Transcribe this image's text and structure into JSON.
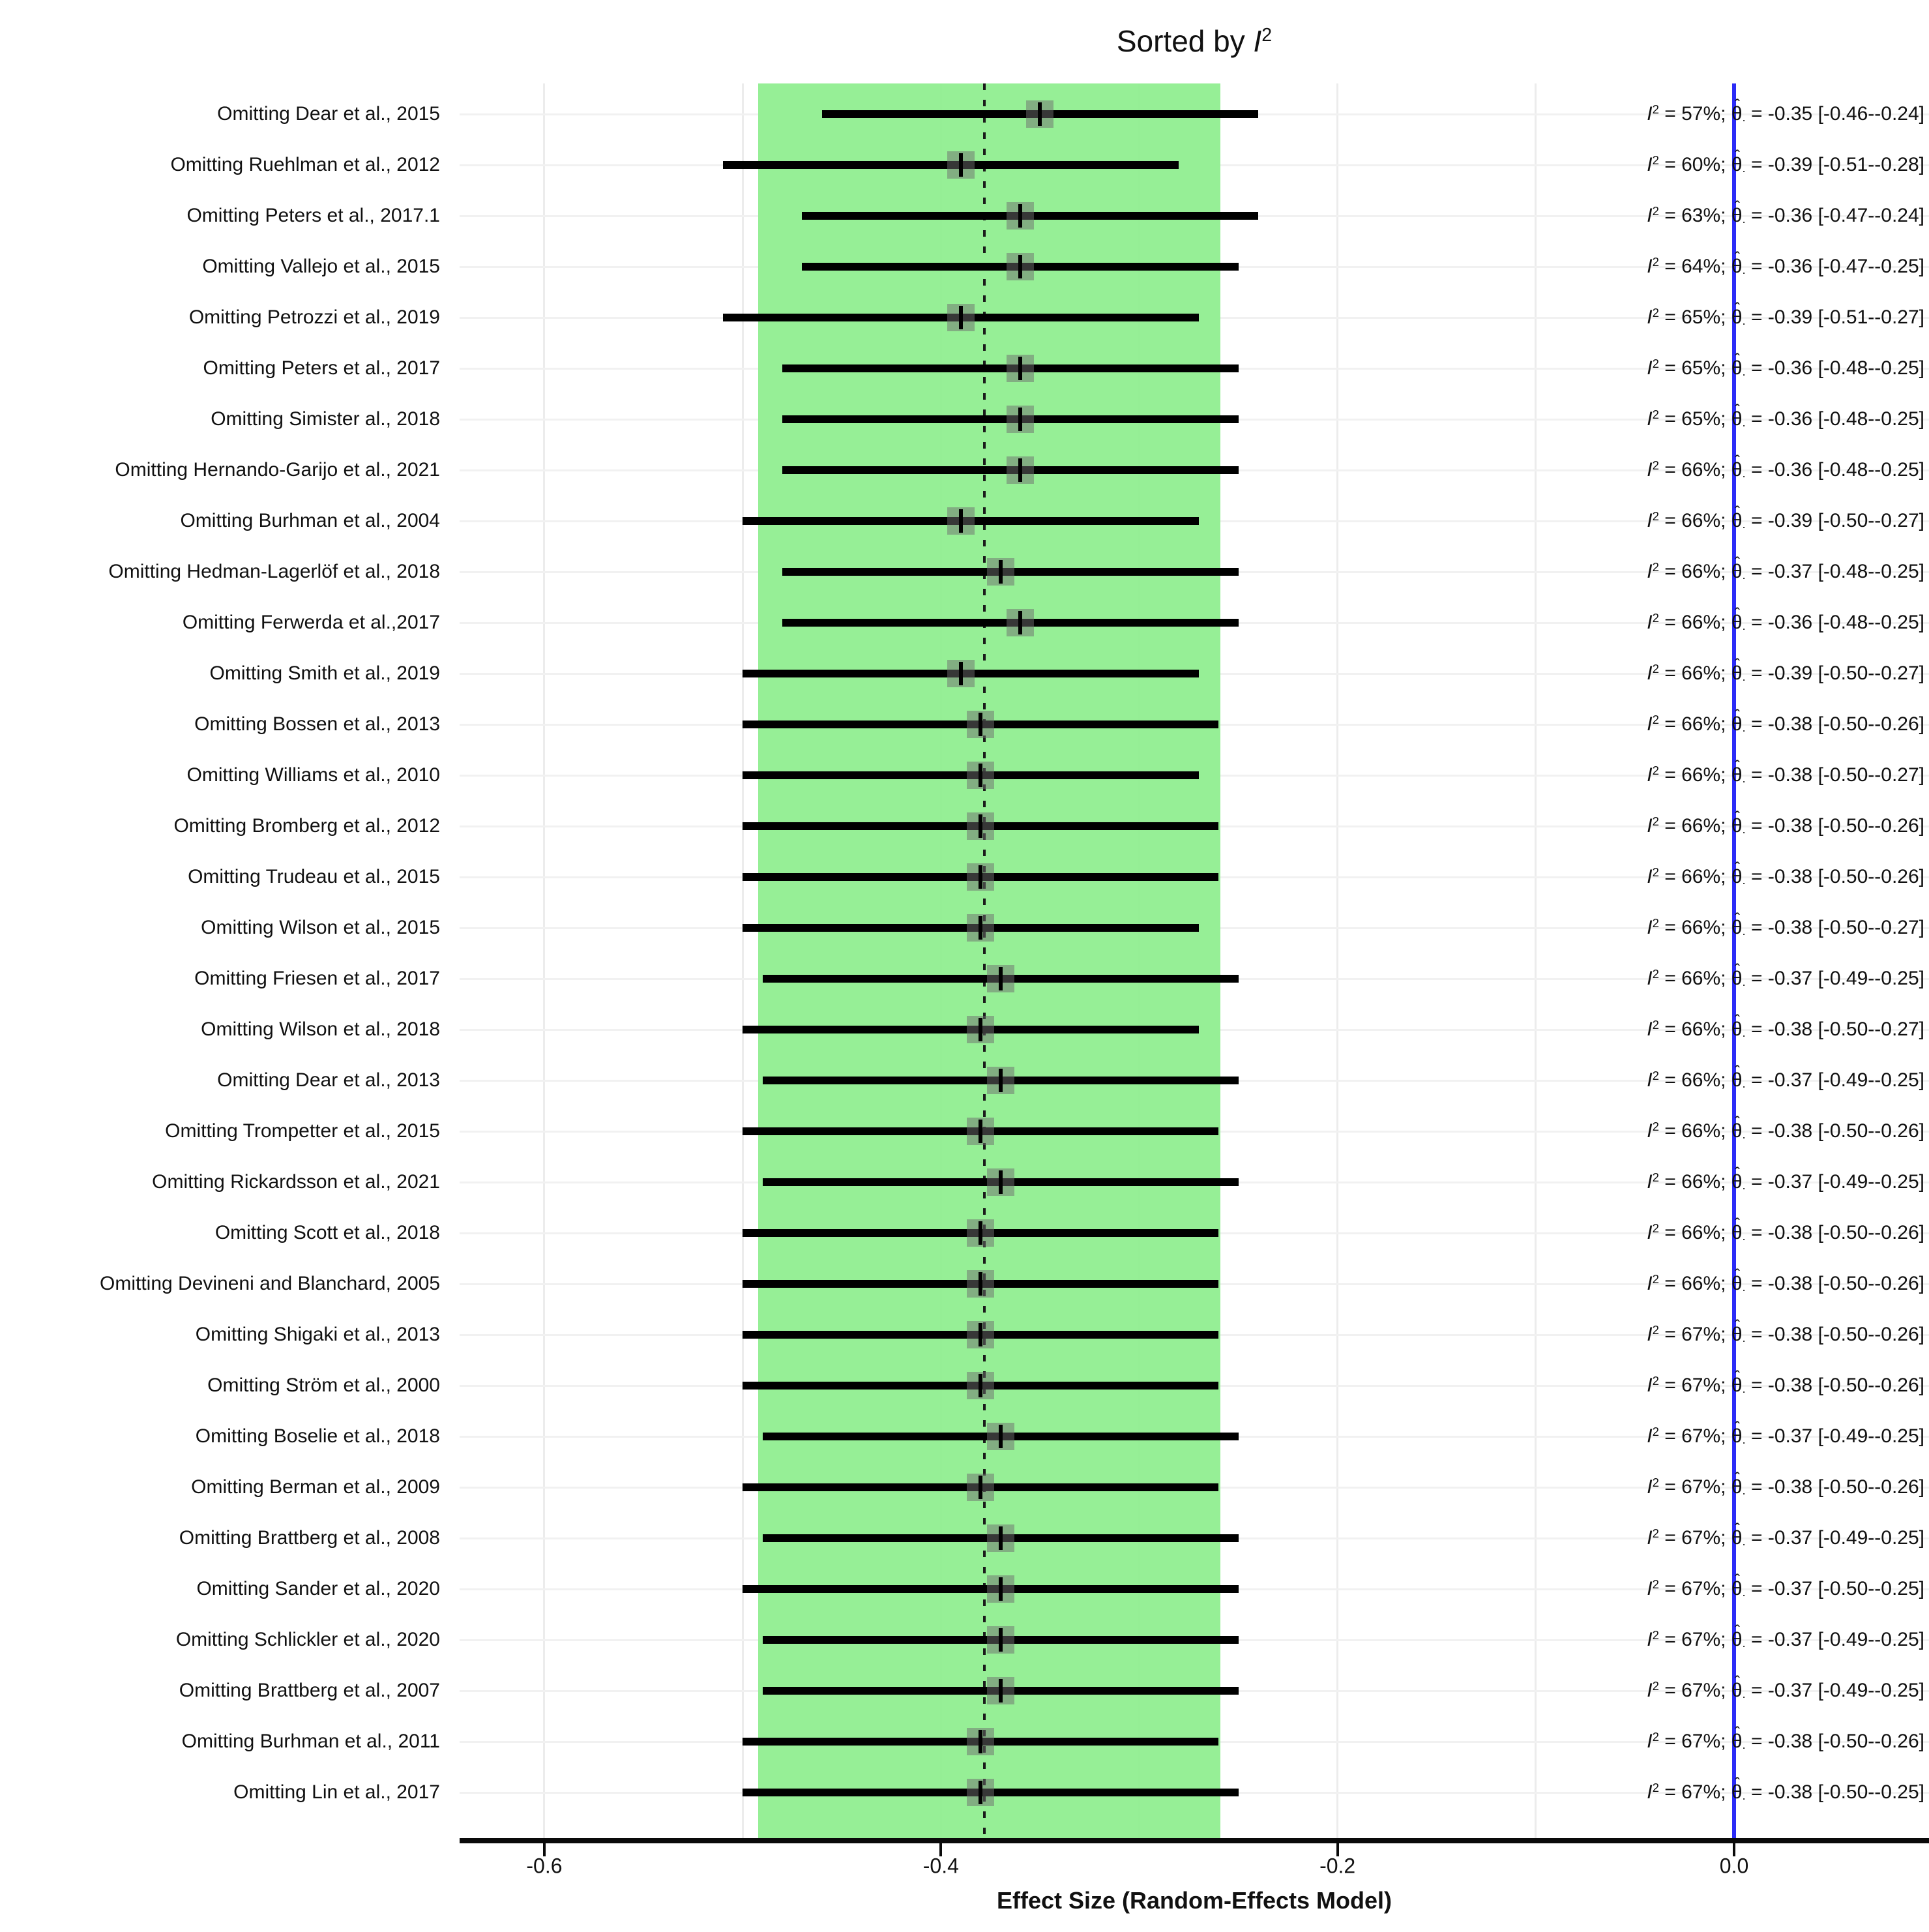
{
  "title": {
    "prefix": "Sorted by ",
    "i_symbol": "I",
    "exponent": "2"
  },
  "x_axis": {
    "label": "Effect Size (Random-Effects Model)",
    "ticks": [
      {
        "value": -0.6,
        "label": "-0.6"
      },
      {
        "value": -0.4,
        "label": "-0.4"
      },
      {
        "value": -0.2,
        "label": "-0.2"
      },
      {
        "value": 0.0,
        "label": "0.0"
      }
    ]
  },
  "annot_format": {
    "i_symbol": "I",
    "i_exponent": "2",
    "equals": " = ",
    "separator": "; ",
    "theta_symbol": "θ",
    "hat_symbol": "ˆ",
    "theta_subscript": ".",
    "space": " ",
    "bracket_open": "[",
    "ci_joiner": "-",
    "bracket_close": "]"
  },
  "colors": {
    "green_band": "rgba(144,238,144,0.95)",
    "zero_line": "#2b2bf7",
    "pooled_line": "#1b1b1b",
    "ci_line": "#000000",
    "marker": "rgba(110,110,110,0.5)"
  },
  "chart_data": {
    "type": "scatter",
    "subtype": "forest-plot-leave-one-out",
    "title": "Sorted by I2",
    "xlabel": "Effect Size (Random-Effects Model)",
    "xlim": [
      -0.643,
      0.098
    ],
    "x_ticks": [
      -0.6,
      -0.4,
      -0.2,
      0.0
    ],
    "x_gridlines": [
      -0.6,
      -0.5,
      -0.4,
      -0.3,
      -0.2,
      -0.1,
      0.0
    ],
    "grid": true,
    "green_band": [
      -0.492,
      -0.259
    ],
    "pooled_estimate_line": -0.378,
    "reference_line": 0.0,
    "legend_position": "none",
    "rows": [
      {
        "label": "Omitting Dear et al., 2015",
        "i2": "57%",
        "estimate": "-0.35",
        "ci_low": "-0.46",
        "ci_high": "-0.24"
      },
      {
        "label": "Omitting Ruehlman et al., 2012",
        "i2": "60%",
        "estimate": "-0.39",
        "ci_low": "-0.51",
        "ci_high": "-0.28"
      },
      {
        "label": "Omitting Peters et al., 2017.1",
        "i2": "63%",
        "estimate": "-0.36",
        "ci_low": "-0.47",
        "ci_high": "-0.24"
      },
      {
        "label": "Omitting Vallejo et al., 2015",
        "i2": "64%",
        "estimate": "-0.36",
        "ci_low": "-0.47",
        "ci_high": "-0.25"
      },
      {
        "label": "Omitting Petrozzi et al., 2019",
        "i2": "65%",
        "estimate": "-0.39",
        "ci_low": "-0.51",
        "ci_high": "-0.27"
      },
      {
        "label": "Omitting Peters et al., 2017",
        "i2": "65%",
        "estimate": "-0.36",
        "ci_low": "-0.48",
        "ci_high": "-0.25"
      },
      {
        "label": "Omitting Simister al., 2018",
        "i2": "65%",
        "estimate": "-0.36",
        "ci_low": "-0.48",
        "ci_high": "-0.25"
      },
      {
        "label": "Omitting Hernando-Garijo et al., 2021",
        "i2": "66%",
        "estimate": "-0.36",
        "ci_low": "-0.48",
        "ci_high": "-0.25"
      },
      {
        "label": "Omitting Burhman et al., 2004",
        "i2": "66%",
        "estimate": "-0.39",
        "ci_low": "-0.50",
        "ci_high": "-0.27"
      },
      {
        "label": "Omitting Hedman-Lagerlöf et al., 2018",
        "i2": "66%",
        "estimate": "-0.37",
        "ci_low": "-0.48",
        "ci_high": "-0.25"
      },
      {
        "label": "Omitting Ferwerda et al.,2017",
        "i2": "66%",
        "estimate": "-0.36",
        "ci_low": "-0.48",
        "ci_high": "-0.25"
      },
      {
        "label": "Omitting Smith et al., 2019",
        "i2": "66%",
        "estimate": "-0.39",
        "ci_low": "-0.50",
        "ci_high": "-0.27"
      },
      {
        "label": "Omitting Bossen et al., 2013",
        "i2": "66%",
        "estimate": "-0.38",
        "ci_low": "-0.50",
        "ci_high": "-0.26"
      },
      {
        "label": "Omitting Williams et al., 2010",
        "i2": "66%",
        "estimate": "-0.38",
        "ci_low": "-0.50",
        "ci_high": "-0.27"
      },
      {
        "label": "Omitting Bromberg et al., 2012",
        "i2": "66%",
        "estimate": "-0.38",
        "ci_low": "-0.50",
        "ci_high": "-0.26"
      },
      {
        "label": "Omitting Trudeau et al., 2015",
        "i2": "66%",
        "estimate": "-0.38",
        "ci_low": "-0.50",
        "ci_high": "-0.26"
      },
      {
        "label": "Omitting Wilson et al., 2015",
        "i2": "66%",
        "estimate": "-0.38",
        "ci_low": "-0.50",
        "ci_high": "-0.27"
      },
      {
        "label": "Omitting Friesen et al., 2017",
        "i2": "66%",
        "estimate": "-0.37",
        "ci_low": "-0.49",
        "ci_high": "-0.25"
      },
      {
        "label": "Omitting Wilson et al., 2018",
        "i2": "66%",
        "estimate": "-0.38",
        "ci_low": "-0.50",
        "ci_high": "-0.27"
      },
      {
        "label": "Omitting Dear et al., 2013",
        "i2": "66%",
        "estimate": "-0.37",
        "ci_low": "-0.49",
        "ci_high": "-0.25"
      },
      {
        "label": "Omitting Trompetter et al., 2015",
        "i2": "66%",
        "estimate": "-0.38",
        "ci_low": "-0.50",
        "ci_high": "-0.26"
      },
      {
        "label": "Omitting Rickardsson et al., 2021",
        "i2": "66%",
        "estimate": "-0.37",
        "ci_low": "-0.49",
        "ci_high": "-0.25"
      },
      {
        "label": "Omitting Scott et al., 2018",
        "i2": "66%",
        "estimate": "-0.38",
        "ci_low": "-0.50",
        "ci_high": "-0.26"
      },
      {
        "label": "Omitting Devineni and Blanchard, 2005",
        "i2": "66%",
        "estimate": "-0.38",
        "ci_low": "-0.50",
        "ci_high": "-0.26"
      },
      {
        "label": "Omitting Shigaki et al., 2013",
        "i2": "67%",
        "estimate": "-0.38",
        "ci_low": "-0.50",
        "ci_high": "-0.26"
      },
      {
        "label": "Omitting Ström et al., 2000",
        "i2": "67%",
        "estimate": "-0.38",
        "ci_low": "-0.50",
        "ci_high": "-0.26"
      },
      {
        "label": "Omitting Boselie et al., 2018",
        "i2": "67%",
        "estimate": "-0.37",
        "ci_low": "-0.49",
        "ci_high": "-0.25"
      },
      {
        "label": "Omitting Berman et al., 2009",
        "i2": "67%",
        "estimate": "-0.38",
        "ci_low": "-0.50",
        "ci_high": "-0.26"
      },
      {
        "label": "Omitting Brattberg et al., 2008",
        "i2": "67%",
        "estimate": "-0.37",
        "ci_low": "-0.49",
        "ci_high": "-0.25"
      },
      {
        "label": "Omitting Sander et al., 2020",
        "i2": "67%",
        "estimate": "-0.37",
        "ci_low": "-0.50",
        "ci_high": "-0.25"
      },
      {
        "label": "Omitting Schlickler et al., 2020",
        "i2": "67%",
        "estimate": "-0.37",
        "ci_low": "-0.49",
        "ci_high": "-0.25"
      },
      {
        "label": "Omitting Brattberg et al., 2007",
        "i2": "67%",
        "estimate": "-0.37",
        "ci_low": "-0.49",
        "ci_high": "-0.25"
      },
      {
        "label": "Omitting Burhman et al., 2011",
        "i2": "67%",
        "estimate": "-0.38",
        "ci_low": "-0.50",
        "ci_high": "-0.26"
      },
      {
        "label": "Omitting Lin et al., 2017",
        "i2": "67%",
        "estimate": "-0.38",
        "ci_low": "-0.50",
        "ci_high": "-0.25"
      }
    ]
  }
}
